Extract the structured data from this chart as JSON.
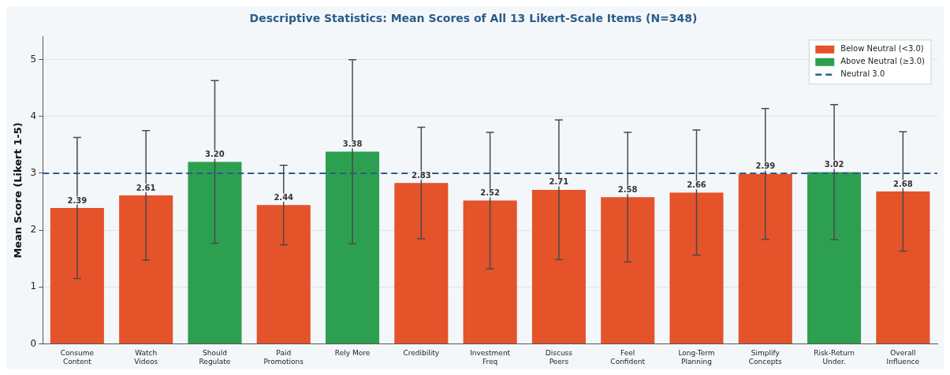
{
  "chart_data": {
    "type": "bar",
    "title": "Descriptive Statistics: Mean Scores of All 13 Likert-Scale Items (N=348)",
    "ylabel": "Mean Score (Likert 1-5)",
    "categories": [
      "Consume\nContent",
      "Watch\nVideos",
      "Should\nRegulate",
      "Paid\nPromotions",
      "Rely More",
      "Credibility",
      "Investment\nFreq",
      "Discuss\nPeers",
      "Feel\nConfident",
      "Long-Term\nPlanning",
      "Simplify\nConcepts",
      "Risk-Return\nUnder.",
      "Overall\nInfluence"
    ],
    "series": [
      {
        "name": "Below Neutral (<3.0)",
        "color": "#e4532a",
        "values": [
          2.39,
          2.61,
          null,
          2.44,
          null,
          2.83,
          2.52,
          2.71,
          2.58,
          2.66,
          2.99,
          null,
          2.68
        ],
        "errors": [
          1.24,
          1.14,
          null,
          0.7,
          null,
          0.98,
          1.2,
          1.23,
          1.14,
          1.1,
          1.15,
          null,
          1.05
        ],
        "value_labels": [
          "2.39",
          "2.61",
          null,
          "2.44",
          null,
          "2.83",
          "2.52",
          "2.71",
          "2.58",
          "2.66",
          "2.99",
          null,
          "2.68"
        ]
      },
      {
        "name": "Above Neutral (≥3.0)",
        "color": "#2ca050",
        "values": [
          null,
          null,
          3.2,
          null,
          3.38,
          null,
          null,
          null,
          null,
          null,
          null,
          3.02,
          null
        ],
        "errors": [
          null,
          null,
          1.43,
          null,
          1.62,
          null,
          null,
          null,
          null,
          null,
          null,
          1.19,
          null
        ],
        "value_labels": [
          null,
          null,
          "3.20",
          null,
          "3.38",
          null,
          null,
          null,
          null,
          null,
          null,
          "3.02",
          null
        ]
      }
    ],
    "ref_lines": [
      {
        "axis": "y",
        "value": 3,
        "label": "Neutral 3.0",
        "color": "#2b5c8a",
        "line_style": "dashed"
      }
    ],
    "ylim": [
      0,
      5.4
    ],
    "yticks": [
      0,
      1,
      2,
      3,
      4,
      5
    ],
    "grid": "y",
    "legend": "top right"
  }
}
